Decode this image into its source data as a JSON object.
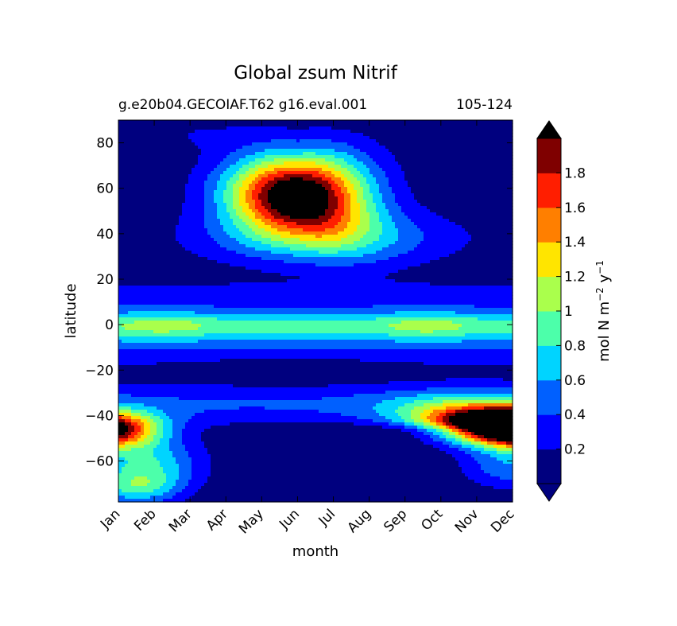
{
  "chart_data": {
    "type": "heatmap",
    "title": "Global zsum Nitrif",
    "subtitle_left": "g.e20b04.GECOIAF.T62 g16.eval.001",
    "subtitle_right": "105-124",
    "xlabel": "month",
    "ylabel": "latitude",
    "x_categories": [
      "Jan",
      "Feb",
      "Mar",
      "Apr",
      "May",
      "Jun",
      "Jul",
      "Aug",
      "Sep",
      "Oct",
      "Nov",
      "Dec"
    ],
    "xlim": [
      1,
      12
    ],
    "ylim": [
      -78,
      90
    ],
    "y_ticks": [
      "80",
      "60",
      "40",
      "20",
      "0",
      "−20",
      "−40",
      "−60"
    ],
    "y_tick_values": [
      80,
      60,
      40,
      20,
      0,
      -20,
      -40,
      -60
    ],
    "colorbar": {
      "label_main": "mol N m",
      "label_exp1": "−2",
      "label_mid": " y",
      "label_exp2": "−1",
      "levels": [
        0,
        0.2,
        0.4,
        0.6,
        0.8,
        1.0,
        1.2,
        1.4,
        1.6,
        1.8,
        2.0
      ],
      "tick_labels": [
        "0.2",
        "0.4",
        "0.6",
        "0.8",
        "1",
        "1.2",
        "1.4",
        "1.6",
        "1.8"
      ],
      "tick_values": [
        0.2,
        0.4,
        0.6,
        0.8,
        1.0,
        1.2,
        1.4,
        1.6,
        1.8
      ],
      "colors": [
        "#00007f",
        "#0000ff",
        "#0060ff",
        "#00d4ff",
        "#4cffaa",
        "#aaff4c",
        "#ffe500",
        "#ff7f00",
        "#ff1e00",
        "#7f0000"
      ],
      "under_color": "#00007f",
      "over_color": "#000000",
      "extend": "both"
    },
    "features": [
      {
        "name": "northern spring-summer maximum",
        "months": [
          4.5,
          8.5
        ],
        "lat_center": 55,
        "peak": 2.3
      },
      {
        "name": "southern autumn maximum (Jan)",
        "months": [
          1,
          3
        ],
        "lat_center": -46,
        "peak": 2.1
      },
      {
        "name": "southern spring maximum (Nov-Dec)",
        "months": [
          9.5,
          12
        ],
        "lat_center": -45,
        "peak": 2.1
      },
      {
        "name": "equatorial band",
        "months": [
          1,
          12
        ],
        "lat_center": 0,
        "peak": 1.05
      },
      {
        "name": "austral polar minimum",
        "months": [
          5,
          11
        ],
        "lat_center": -68,
        "peak": 0.1
      },
      {
        "name": "subtropical minima",
        "months": [
          1,
          12
        ],
        "lat_center": -20,
        "peak": 0.15
      }
    ]
  }
}
